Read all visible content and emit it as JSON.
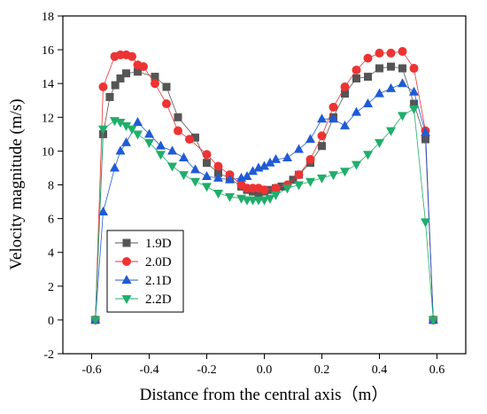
{
  "chart_data": {
    "type": "line",
    "title": "",
    "xlabel": "Distance from the central axis（m）",
    "ylabel": "Velocity magnitude (m/s)",
    "xlim": [
      -0.7,
      0.7
    ],
    "ylim": [
      -2,
      18
    ],
    "xticks": [
      "-0.6",
      "-0.4",
      "-0.2",
      "0.0",
      "0.2",
      "0.4",
      "0.6"
    ],
    "yticks": [
      "-2",
      "0",
      "2",
      "4",
      "6",
      "8",
      "10",
      "12",
      "14",
      "16",
      "18"
    ],
    "grid": false,
    "legend_position": "lower-left",
    "series": [
      {
        "name": "1.9D",
        "color": "#555555",
        "marker": "square",
        "x": [
          -0.587,
          -0.56,
          -0.537,
          -0.518,
          -0.5,
          -0.48,
          -0.44,
          -0.38,
          -0.34,
          -0.3,
          -0.24,
          -0.2,
          -0.16,
          -0.12,
          -0.08,
          -0.06,
          -0.04,
          -0.02,
          0.0,
          0.02,
          0.04,
          0.06,
          0.1,
          0.12,
          0.16,
          0.2,
          0.24,
          0.28,
          0.32,
          0.36,
          0.4,
          0.44,
          0.48,
          0.52,
          0.56,
          0.587
        ],
        "y": [
          0.0,
          11.0,
          13.2,
          13.9,
          14.3,
          14.6,
          14.7,
          14.4,
          13.8,
          12.0,
          10.8,
          9.3,
          8.7,
          8.4,
          7.9,
          7.7,
          7.6,
          7.5,
          7.6,
          7.7,
          7.8,
          7.9,
          8.3,
          8.6,
          9.3,
          10.3,
          12.0,
          13.4,
          14.3,
          14.4,
          14.9,
          15.0,
          14.9,
          12.8,
          10.7,
          0.0
        ]
      },
      {
        "name": "2.0D",
        "color": "#ee3333",
        "marker": "circle",
        "x": [
          -0.587,
          -0.56,
          -0.52,
          -0.5,
          -0.48,
          -0.46,
          -0.44,
          -0.42,
          -0.38,
          -0.34,
          -0.3,
          -0.26,
          -0.2,
          -0.16,
          -0.12,
          -0.08,
          -0.06,
          -0.04,
          -0.02,
          0.0,
          0.04,
          0.08,
          0.12,
          0.16,
          0.2,
          0.24,
          0.28,
          0.32,
          0.36,
          0.4,
          0.44,
          0.48,
          0.52,
          0.56,
          0.587
        ],
        "y": [
          0.0,
          13.8,
          15.6,
          15.7,
          15.7,
          15.6,
          15.1,
          15.0,
          14.0,
          12.8,
          11.2,
          10.7,
          9.8,
          9.1,
          8.6,
          8.0,
          7.8,
          7.8,
          7.8,
          7.7,
          7.8,
          8.0,
          8.6,
          9.5,
          10.9,
          12.6,
          13.8,
          14.8,
          15.5,
          15.8,
          15.8,
          15.9,
          14.9,
          11.2,
          0.0
        ]
      },
      {
        "name": "2.1D",
        "color": "#1f5bd6",
        "marker": "triangle-up",
        "x": [
          -0.587,
          -0.56,
          -0.52,
          -0.5,
          -0.48,
          -0.44,
          -0.4,
          -0.36,
          -0.32,
          -0.28,
          -0.24,
          -0.2,
          -0.16,
          -0.12,
          -0.08,
          -0.06,
          -0.04,
          -0.02,
          0.0,
          0.02,
          0.04,
          0.08,
          0.12,
          0.16,
          0.2,
          0.24,
          0.28,
          0.32,
          0.36,
          0.4,
          0.44,
          0.48,
          0.52,
          0.56,
          0.587
        ],
        "y": [
          0.0,
          6.4,
          9.0,
          10.0,
          10.5,
          11.7,
          11.0,
          10.3,
          10.0,
          9.6,
          8.9,
          8.5,
          8.4,
          8.3,
          8.4,
          8.5,
          8.8,
          9.0,
          9.1,
          9.3,
          9.5,
          9.6,
          10.1,
          10.7,
          11.9,
          11.9,
          11.5,
          12.3,
          12.8,
          13.4,
          13.7,
          14.0,
          13.5,
          11.1,
          0.0
        ]
      },
      {
        "name": "2.2D",
        "color": "#1fae6b",
        "marker": "triangle-down",
        "x": [
          -0.587,
          -0.56,
          -0.52,
          -0.5,
          -0.48,
          -0.46,
          -0.44,
          -0.4,
          -0.36,
          -0.32,
          -0.28,
          -0.24,
          -0.2,
          -0.16,
          -0.12,
          -0.08,
          -0.06,
          -0.04,
          -0.02,
          0.0,
          0.02,
          0.04,
          0.08,
          0.12,
          0.16,
          0.2,
          0.24,
          0.28,
          0.32,
          0.36,
          0.4,
          0.44,
          0.48,
          0.52,
          0.56,
          0.587
        ],
        "y": [
          0.0,
          11.3,
          11.8,
          11.7,
          11.5,
          11.3,
          11.0,
          10.5,
          9.8,
          9.1,
          8.6,
          8.2,
          7.9,
          7.5,
          7.3,
          7.2,
          7.1,
          7.1,
          7.1,
          7.1,
          7.2,
          7.4,
          7.8,
          8.0,
          8.2,
          8.4,
          8.6,
          8.8,
          9.2,
          9.8,
          10.5,
          11.2,
          12.1,
          12.5,
          5.8,
          0.0
        ]
      }
    ]
  }
}
